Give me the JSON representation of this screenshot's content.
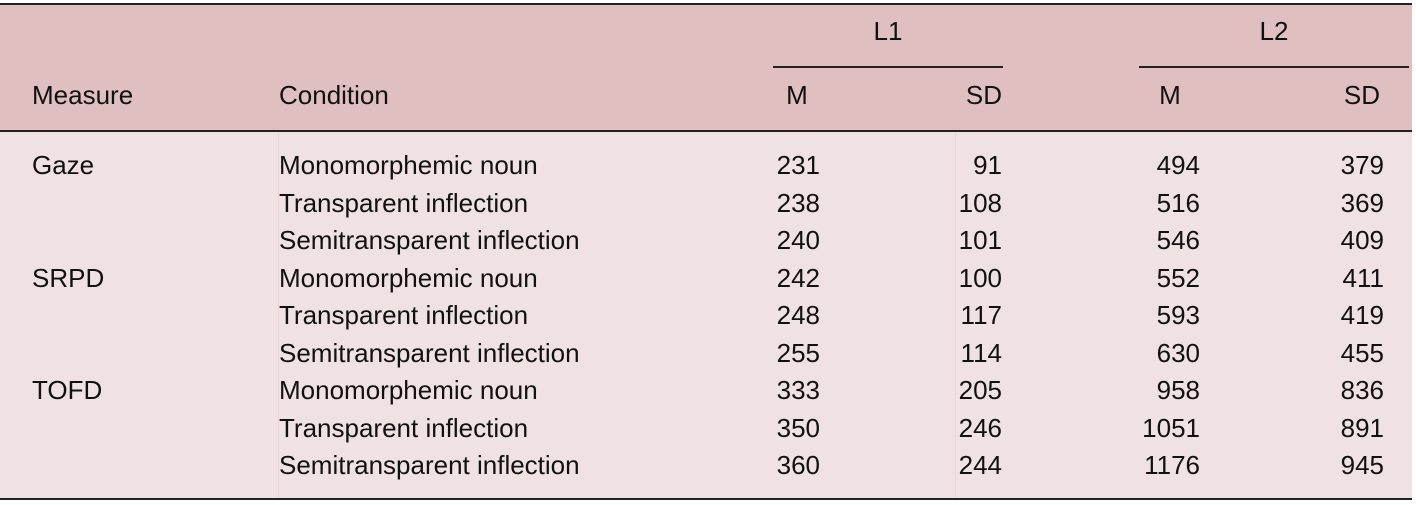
{
  "table": {
    "header": {
      "measure": "Measure",
      "condition": "Condition",
      "groups": [
        {
          "label": "L1",
          "sub": [
            "M",
            "SD"
          ]
        },
        {
          "label": "L2",
          "sub": [
            "M",
            "SD"
          ]
        }
      ]
    },
    "rows": [
      {
        "measure": "Gaze",
        "condition": "Monomorphemic noun",
        "l1_m": "231",
        "l1_sd": "91",
        "l2_m": "494",
        "l2_sd": "379"
      },
      {
        "measure": "",
        "condition": "Transparent inflection",
        "l1_m": "238",
        "l1_sd": "108",
        "l2_m": "516",
        "l2_sd": "369"
      },
      {
        "measure": "",
        "condition": "Semitransparent inflection",
        "l1_m": "240",
        "l1_sd": "101",
        "l2_m": "546",
        "l2_sd": "409"
      },
      {
        "measure": "SRPD",
        "condition": "Monomorphemic noun",
        "l1_m": "242",
        "l1_sd": "100",
        "l2_m": "552",
        "l2_sd": "411"
      },
      {
        "measure": "",
        "condition": "Transparent inflection",
        "l1_m": "248",
        "l1_sd": "117",
        "l2_m": "593",
        "l2_sd": "419"
      },
      {
        "measure": "",
        "condition": "Semitransparent inflection",
        "l1_m": "255",
        "l1_sd": "114",
        "l2_m": "630",
        "l2_sd": "455"
      },
      {
        "measure": "TOFD",
        "condition": "Monomorphemic noun",
        "l1_m": "333",
        "l1_sd": "205",
        "l2_m": "958",
        "l2_sd": "836"
      },
      {
        "measure": "",
        "condition": "Transparent inflection",
        "l1_m": "350",
        "l1_sd": "246",
        "l2_m": "1051",
        "l2_sd": "891"
      },
      {
        "measure": "",
        "condition": "Semitransparent inflection",
        "l1_m": "360",
        "l1_sd": "244",
        "l2_m": "1176",
        "l2_sd": "945"
      }
    ]
  },
  "colors": {
    "header_bg": "#dfbfbf",
    "body_bg": "#f0e2e2",
    "rule": "#222222"
  }
}
